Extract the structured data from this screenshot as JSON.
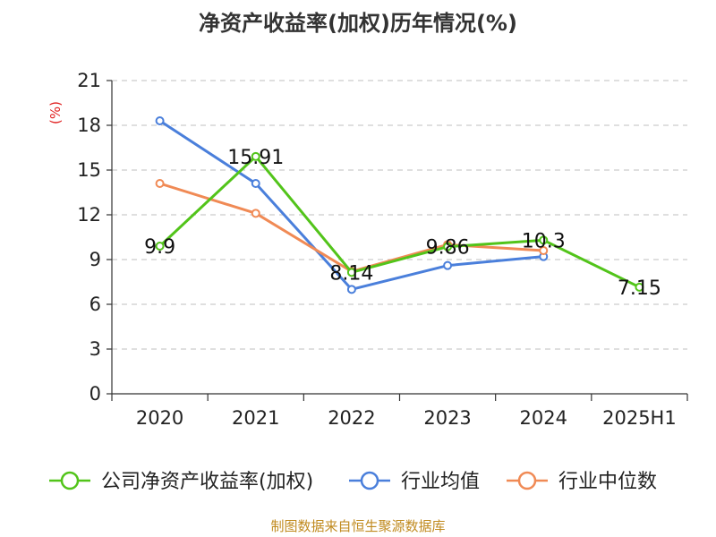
{
  "title": "净资产收益率(加权)历年情况(%)",
  "unit_label": "(%)",
  "source": "制图数据来自恒生聚源数据库",
  "colors": {
    "company": "#52c41a",
    "industry_avg": "#4a7fdb",
    "industry_median": "#f08a55",
    "grid": "#cccccc",
    "axis": "#333333"
  },
  "chart_data": {
    "type": "line",
    "categories": [
      "2020",
      "2021",
      "2022",
      "2023",
      "2024",
      "2025H1"
    ],
    "ylim": [
      0,
      21
    ],
    "yticks": [
      0,
      3,
      6,
      9,
      12,
      15,
      18,
      21
    ],
    "grid": true,
    "legend_position": "bottom",
    "series": [
      {
        "name": "公司净资产收益率(加权)",
        "color_key": "company",
        "values": [
          9.9,
          15.91,
          8.14,
          9.86,
          10.3,
          7.15
        ],
        "labels": [
          "9.9",
          "15.91",
          "8.14",
          "9.86",
          "10.3",
          "7.15"
        ]
      },
      {
        "name": "行业均值",
        "color_key": "industry_avg",
        "values": [
          18.3,
          14.1,
          7.0,
          8.6,
          9.2,
          null
        ]
      },
      {
        "name": "行业中位数",
        "color_key": "industry_median",
        "values": [
          14.1,
          12.1,
          8.2,
          10.0,
          9.6,
          null
        ]
      }
    ]
  }
}
